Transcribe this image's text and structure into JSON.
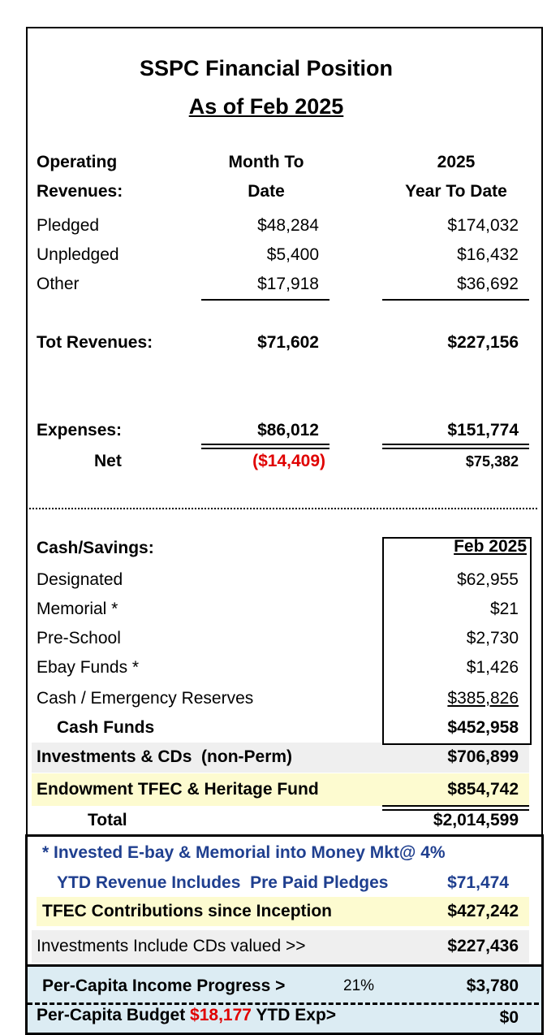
{
  "title": "SSPC Financial Position",
  "subtitle": "As of Feb 2025",
  "revenues": {
    "header": {
      "label": [
        "Operating",
        "Revenues:"
      ],
      "month": [
        "Month To",
        "Date"
      ],
      "year": [
        "2025",
        "Year To Date"
      ]
    },
    "rows": [
      [
        "Pledged",
        "$48,284",
        "$174,032"
      ],
      [
        "Unpledged",
        "$5,400",
        "$16,432"
      ],
      [
        "Other",
        "$17,918",
        "$36,692"
      ]
    ],
    "total": [
      "Tot Revenues:",
      "$71,602",
      "$227,156"
    ],
    "expenses": [
      "Expenses:",
      "$86,012",
      "$151,774"
    ],
    "net": [
      "Net",
      "($14,409)",
      "$75,382"
    ]
  },
  "cash": {
    "label": "Cash/Savings:",
    "column": "Feb 2025",
    "rows": [
      [
        "Designated",
        "$62,955"
      ],
      [
        "Memorial *",
        "$21"
      ],
      [
        "Pre-School",
        "$2,730"
      ],
      [
        "Ebay Funds *",
        "$1,426"
      ],
      [
        "Cash / Emergency Reserves",
        "$385,826"
      ]
    ],
    "cash_funds": [
      "Cash Funds",
      "$452,958"
    ]
  },
  "investments": [
    "Investments & CDs  (non-Perm)",
    "$706,899"
  ],
  "endowment": [
    "Endowment TFEC & Heritage Fund",
    "$854,742"
  ],
  "total": [
    "Total",
    "$2,014,599"
  ],
  "notes": {
    "invested": "* Invested E-bay & Memorial into Money Mkt@ 4%",
    "prepaid": [
      "YTD Revenue Includes  Pre Paid Pledges",
      "$71,474"
    ],
    "tfec": [
      "TFEC Contributions since Inception",
      "$427,242"
    ],
    "cds": [
      "Investments Include CDs valued >>",
      "$227,436"
    ]
  },
  "per_capita": {
    "progress": [
      "Per-Capita Income Progress >",
      "21%",
      "$3,780"
    ],
    "budget": [
      "Per-Capita Budget",
      "$18,177",
      "YTD Exp>",
      "$0"
    ]
  }
}
